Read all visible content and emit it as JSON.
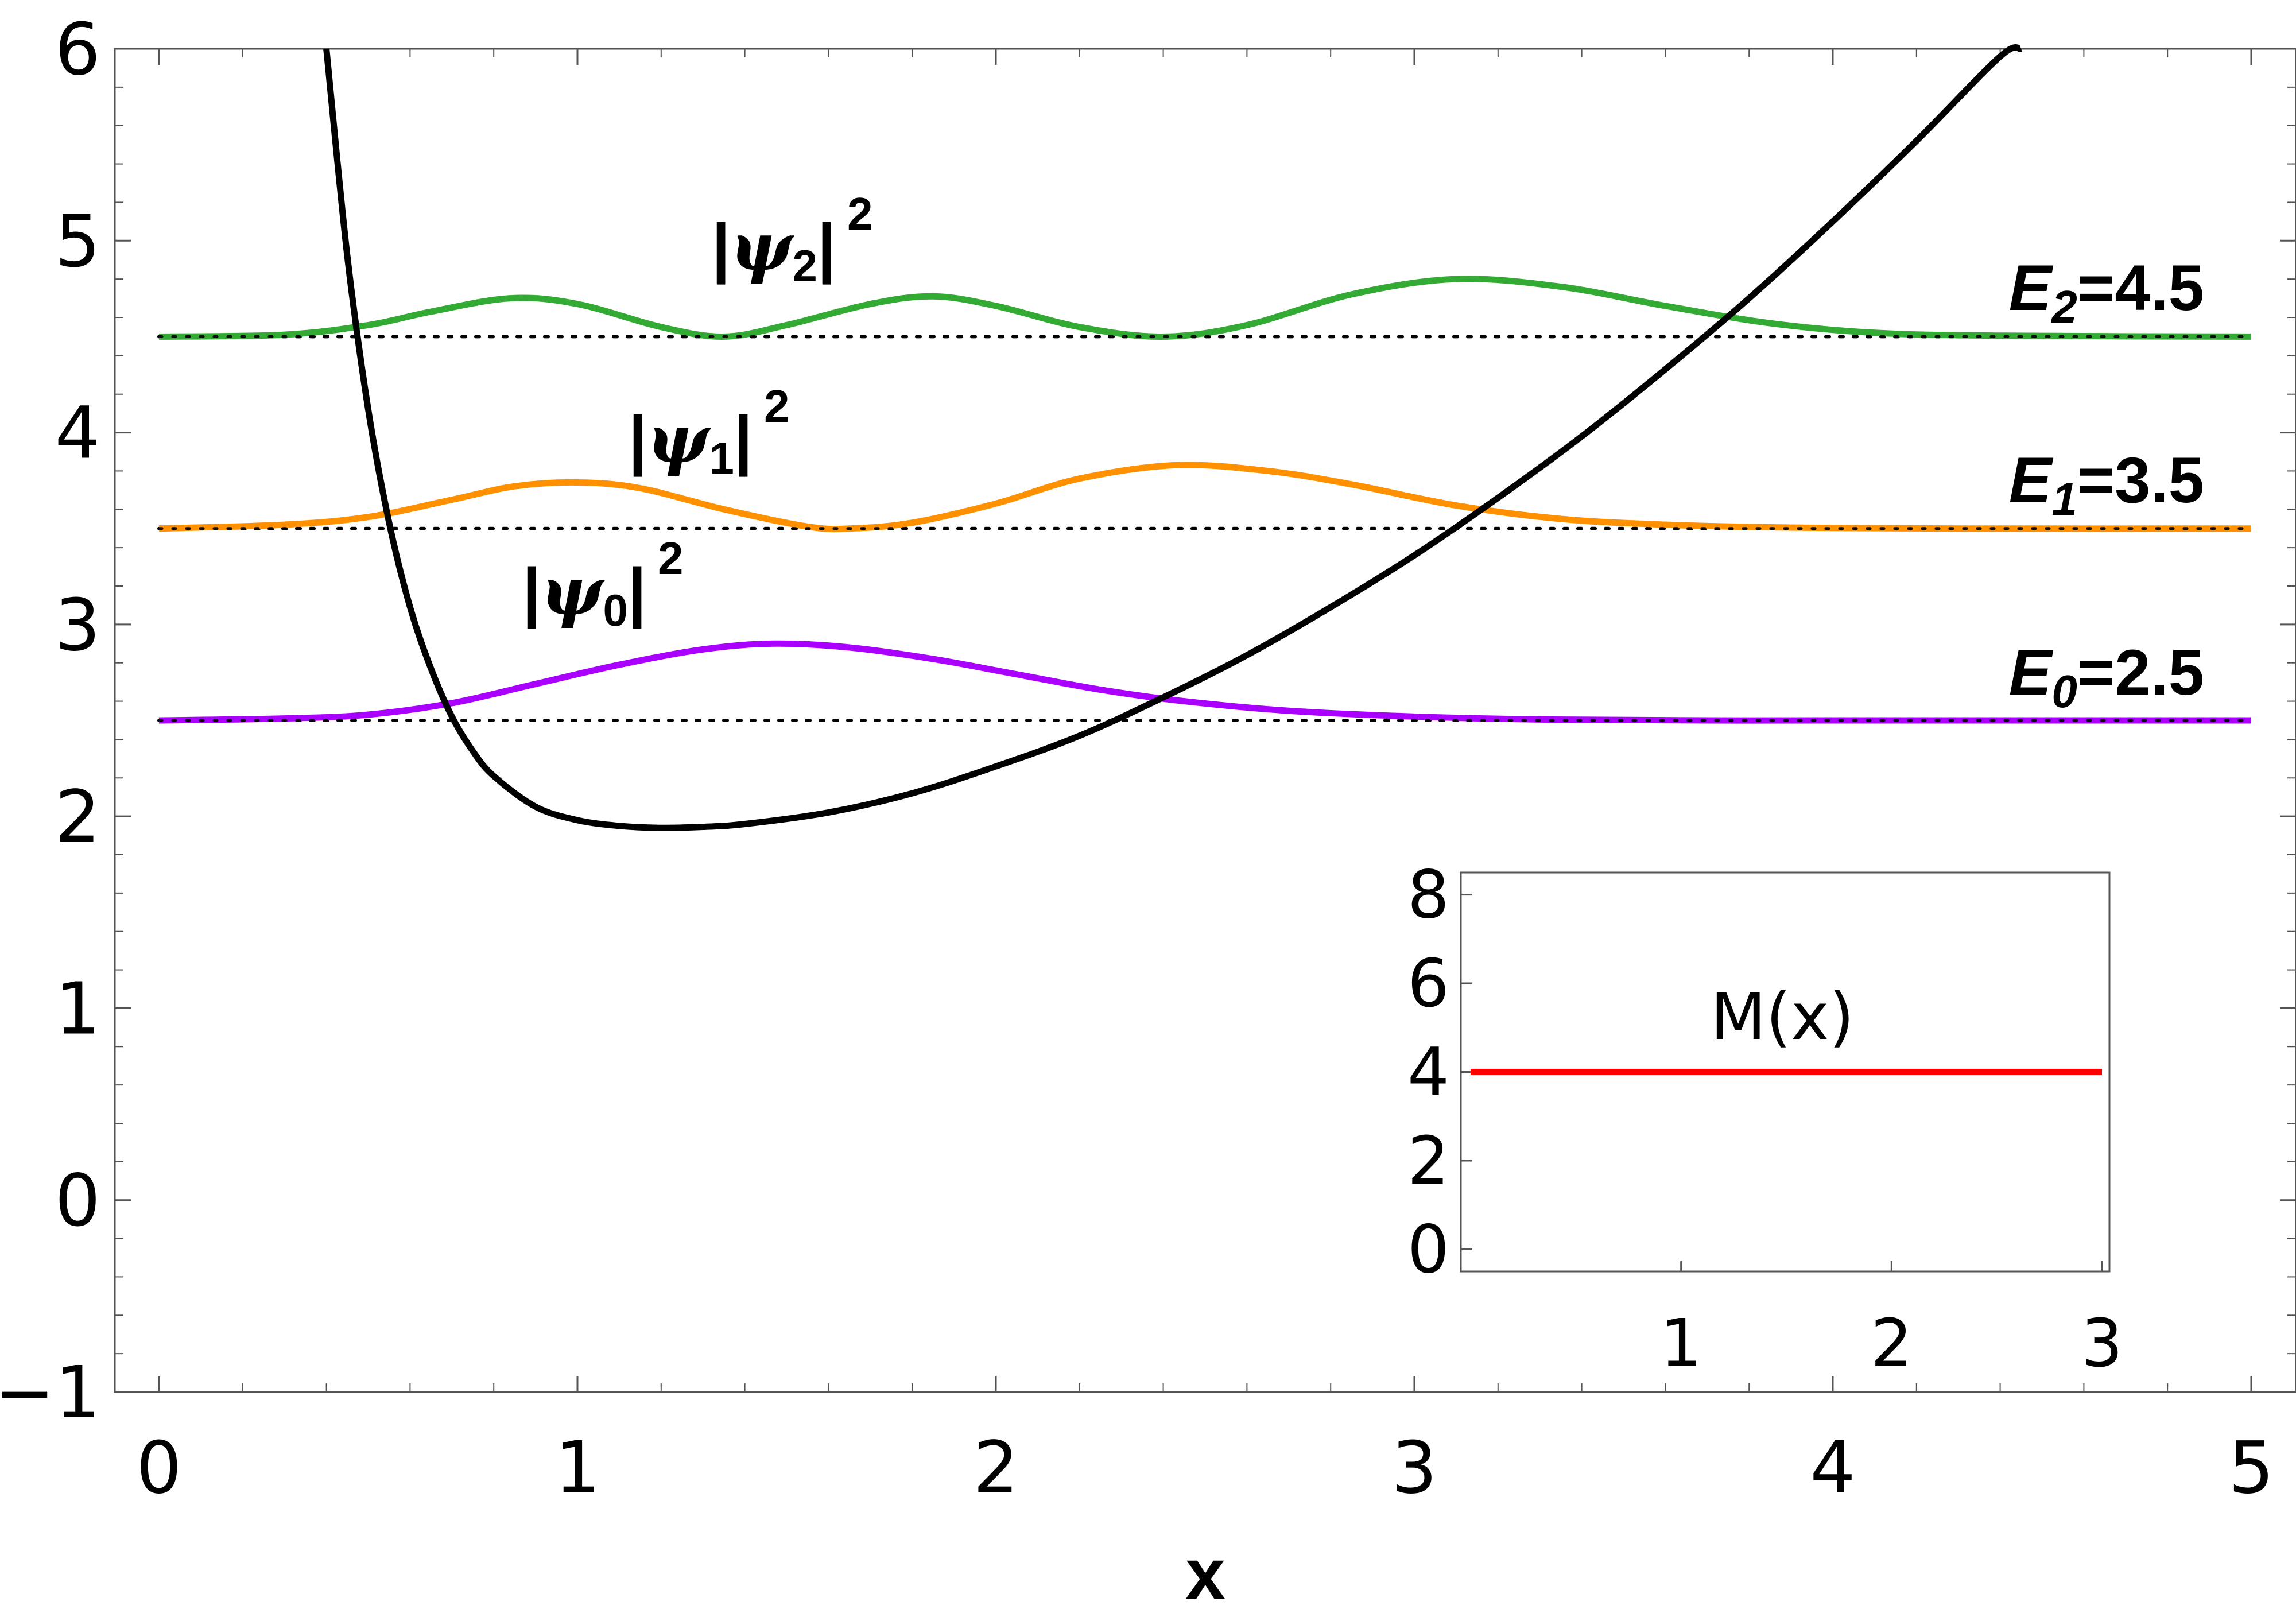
{
  "chart_data": [
    {
      "type": "line",
      "xlabel": "x",
      "ylabel": "",
      "xlim": [
        0,
        5
      ],
      "ylim": [
        -1,
        6
      ],
      "xticks": [
        "0",
        "1",
        "2",
        "3",
        "4",
        "5"
      ],
      "yticks": [
        "-1",
        "0",
        "1",
        "2",
        "3",
        "4",
        "5",
        "6"
      ],
      "potential": {
        "color": "#000000",
        "x": [
          0.4,
          0.45,
          0.5,
          0.55,
          0.6,
          0.65,
          0.7,
          0.75,
          0.8,
          0.9,
          1.0,
          1.1,
          1.2,
          1.3,
          1.4,
          1.6,
          1.8,
          2.0,
          2.2,
          2.4,
          2.6,
          2.8,
          3.0,
          3.2,
          3.4,
          3.6,
          3.8,
          4.0,
          4.2,
          4.4,
          4.45
        ],
        "y": [
          6.0,
          4.92,
          4.12,
          3.53,
          3.09,
          2.77,
          2.52,
          2.34,
          2.21,
          2.05,
          1.98,
          1.95,
          1.94,
          1.945,
          1.96,
          2.02,
          2.12,
          2.26,
          2.42,
          2.62,
          2.84,
          3.09,
          3.36,
          3.66,
          3.98,
          4.33,
          4.7,
          5.1,
          5.52,
          5.96,
          6.0
        ]
      },
      "levels": [
        {
          "label": "E",
          "subscript": "0",
          "value_text": "=2.5",
          "energy": 2.5
        },
        {
          "label": "E",
          "subscript": "1",
          "value_text": "=3.5",
          "energy": 3.5
        },
        {
          "label": "E",
          "subscript": "2",
          "value_text": "=4.5",
          "energy": 4.5
        }
      ],
      "series": [
        {
          "label": "|ψ0|2",
          "color": "#aa00ff",
          "baseline": 2.5,
          "x": [
            0,
            0.3,
            0.5,
            0.7,
            0.9,
            1.1,
            1.3,
            1.47,
            1.65,
            1.85,
            2.05,
            2.25,
            2.45,
            2.7,
            3.0,
            3.3,
            3.7,
            4.2,
            5.0
          ],
          "y": [
            2.5,
            2.51,
            2.53,
            2.59,
            2.69,
            2.79,
            2.87,
            2.9,
            2.88,
            2.82,
            2.74,
            2.66,
            2.6,
            2.55,
            2.52,
            2.505,
            2.5,
            2.5,
            2.5
          ]
        },
        {
          "label": "|ψ1|2",
          "color": "#ff9000",
          "baseline": 3.5,
          "x": [
            0,
            0.3,
            0.5,
            0.7,
            0.85,
            1.0,
            1.15,
            1.35,
            1.55,
            1.65,
            1.8,
            2.0,
            2.2,
            2.43,
            2.65,
            2.85,
            3.1,
            3.35,
            3.6,
            3.9,
            4.3,
            5.0
          ],
          "y": [
            3.5,
            3.52,
            3.56,
            3.65,
            3.72,
            3.74,
            3.71,
            3.6,
            3.51,
            3.5,
            3.53,
            3.63,
            3.76,
            3.83,
            3.8,
            3.73,
            3.62,
            3.55,
            3.52,
            3.505,
            3.5,
            3.5
          ]
        },
        {
          "label": "|ψ2|2",
          "color": "#33aa33",
          "baseline": 4.5,
          "x": [
            0,
            0.3,
            0.5,
            0.65,
            0.84,
            1.0,
            1.2,
            1.35,
            1.5,
            1.7,
            1.85,
            2.0,
            2.2,
            2.4,
            2.6,
            2.85,
            3.1,
            3.35,
            3.6,
            3.85,
            4.1,
            4.4,
            5.0
          ],
          "y": [
            4.5,
            4.51,
            4.56,
            4.63,
            4.7,
            4.67,
            4.55,
            4.5,
            4.56,
            4.67,
            4.71,
            4.66,
            4.55,
            4.5,
            4.56,
            4.72,
            4.8,
            4.76,
            4.66,
            4.57,
            4.52,
            4.505,
            4.5
          ]
        }
      ]
    },
    {
      "type": "line",
      "title": "M(x)",
      "xlim": [
        0,
        3
      ],
      "ylim": [
        -0.5,
        8.5
      ],
      "xticks": [
        "1",
        "2",
        "3"
      ],
      "yticks": [
        "0",
        "2",
        "4",
        "6",
        "8"
      ],
      "series": [
        {
          "label": "M(x)",
          "color": "#ff0000",
          "x": [
            0,
            3
          ],
          "y": [
            4,
            4
          ]
        }
      ]
    }
  ]
}
